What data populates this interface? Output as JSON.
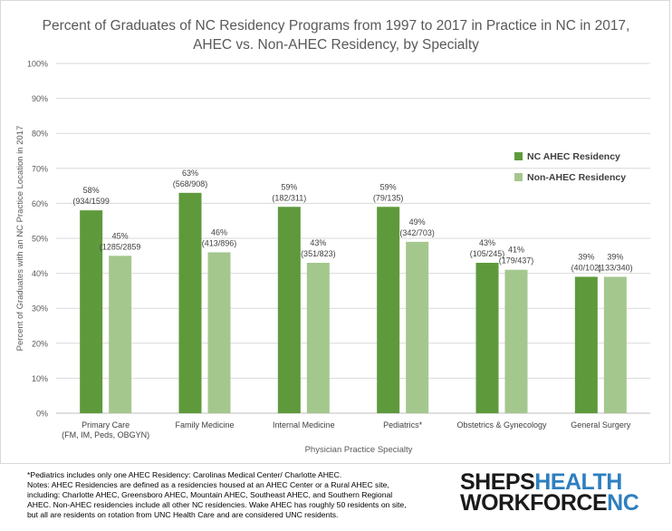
{
  "chart_data": {
    "type": "bar",
    "title_lines": [
      "Percent of Graduates of NC Residency Programs from 1997 to 2017 in Practice in NC in 2017,",
      "AHEC vs. Non-AHEC Residency, by Specialty"
    ],
    "xlabel": "Physician Practice Specialty",
    "ylabel": "Percent of Graduates with an NC Practice Location in 2017",
    "ylim": [
      0,
      100
    ],
    "y_ticks": [
      "0%",
      "10%",
      "20%",
      "30%",
      "40%",
      "50%",
      "60%",
      "70%",
      "80%",
      "90%",
      "100%"
    ],
    "grid": true,
    "legend_position": "right",
    "categories": [
      [
        "Primary Care",
        "(FM, IM, Peds, OBGYN)"
      ],
      [
        "Family Medicine"
      ],
      [
        "Internal Medicine"
      ],
      [
        "Pediatrics*"
      ],
      [
        "Obstetrics & Gynecology"
      ],
      [
        "General Surgery"
      ]
    ],
    "series": [
      {
        "name": "NC AHEC Residency",
        "color": "#5e9a3c",
        "values": [
          58,
          63,
          59,
          59,
          43,
          39
        ],
        "labels": [
          [
            "58%",
            "(934/1599"
          ],
          [
            "63%",
            "(568/908)"
          ],
          [
            "59%",
            "(182/311)"
          ],
          [
            "59%",
            "(79/135)"
          ],
          [
            "43%",
            "(105/245)"
          ],
          [
            "39%",
            "(40/102)"
          ]
        ]
      },
      {
        "name": "Non-AHEC Residency",
        "color": "#a4c78e",
        "values": [
          45,
          46,
          43,
          49,
          41,
          39
        ],
        "labels": [
          [
            "45%",
            "(1285/2859"
          ],
          [
            "46%",
            "(413/896)"
          ],
          [
            "43%",
            "(351/823)"
          ],
          [
            "49%",
            "(342/703)"
          ],
          [
            "41%",
            "(179/437)"
          ],
          [
            "39%",
            "(133/340)"
          ]
        ]
      }
    ]
  },
  "footnotes": [
    "*Pediatrics includes only one AHEC Residency: Carolinas Medical Center/ Charlotte AHEC.",
    "Notes: AHEC Residencies are defined as a residencies housed at an AHEC Center or a Rural AHEC site,",
    "including: Charlotte AHEC, Greensboro AHEC, Mountain AHEC, Southeast AHEC, and Southern Regional",
    "AHEC. Non-AHEC residencies include all other NC residencies.  Wake AHEC has roughly 50 residents on site,",
    "but all are residents on rotation from UNC Health Care and are considered UNC residents."
  ],
  "logo": {
    "line1_dark": "SHEPS",
    "line1_blue": "HEALTH",
    "line2_dark": "WORKFORCE",
    "line2_blue": "NC"
  }
}
